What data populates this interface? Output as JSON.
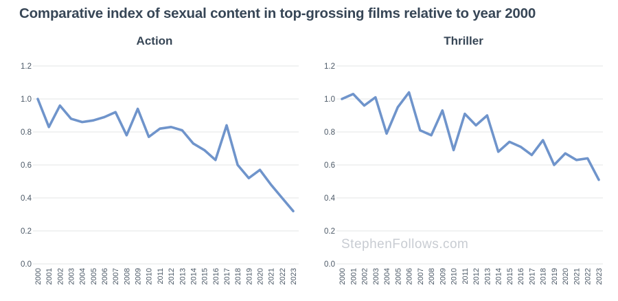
{
  "page": {
    "title": "Comparative index of sexual content in top-grossing films relative to year 2000",
    "watermark": "StephenFollows.com"
  },
  "colors": {
    "line": "#6f94cb",
    "heading": "#374656",
    "grid": "#e3e4e6",
    "tick_label": "#4b5866",
    "watermark": "#c8ccd2"
  },
  "chart_data": [
    {
      "type": "line",
      "title": "Action",
      "x": [
        "2000",
        "2001",
        "2002",
        "2003",
        "2004",
        "2005",
        "2006",
        "2007",
        "2008",
        "2009",
        "2010",
        "2011",
        "2012",
        "2013",
        "2014",
        "2015",
        "2016",
        "2017",
        "2018",
        "2019",
        "2020",
        "2021",
        "2022",
        "2023"
      ],
      "values": [
        1.0,
        0.83,
        0.96,
        0.88,
        0.86,
        0.87,
        0.89,
        0.92,
        0.78,
        0.94,
        0.77,
        0.82,
        0.83,
        0.81,
        0.73,
        0.69,
        0.63,
        0.84,
        0.6,
        0.52,
        0.57,
        0.48,
        0.4,
        0.32
      ],
      "xlabel": "",
      "ylabel": "",
      "ylim": [
        0,
        1.2
      ],
      "yticks": [
        "0.0",
        "0.2",
        "0.4",
        "0.6",
        "0.8",
        "1.0",
        "1.2"
      ],
      "grid": true,
      "legend": false
    },
    {
      "type": "line",
      "title": "Thriller",
      "x": [
        "2000",
        "2001",
        "2002",
        "2003",
        "2004",
        "2005",
        "2006",
        "2007",
        "2008",
        "2009",
        "2010",
        "2011",
        "2012",
        "2013",
        "2014",
        "2015",
        "2016",
        "2017",
        "2018",
        "2019",
        "2020",
        "2021",
        "2022",
        "2023"
      ],
      "values": [
        1.0,
        1.03,
        0.96,
        1.01,
        0.79,
        0.95,
        1.04,
        0.81,
        0.78,
        0.93,
        0.69,
        0.91,
        0.84,
        0.9,
        0.68,
        0.74,
        0.71,
        0.66,
        0.75,
        0.6,
        0.67,
        0.63,
        0.64,
        0.51
      ],
      "xlabel": "",
      "ylabel": "",
      "ylim": [
        0,
        1.2
      ],
      "yticks": [
        "0.0",
        "0.2",
        "0.4",
        "0.6",
        "0.8",
        "1.0",
        "1.2"
      ],
      "grid": true,
      "legend": false
    }
  ]
}
